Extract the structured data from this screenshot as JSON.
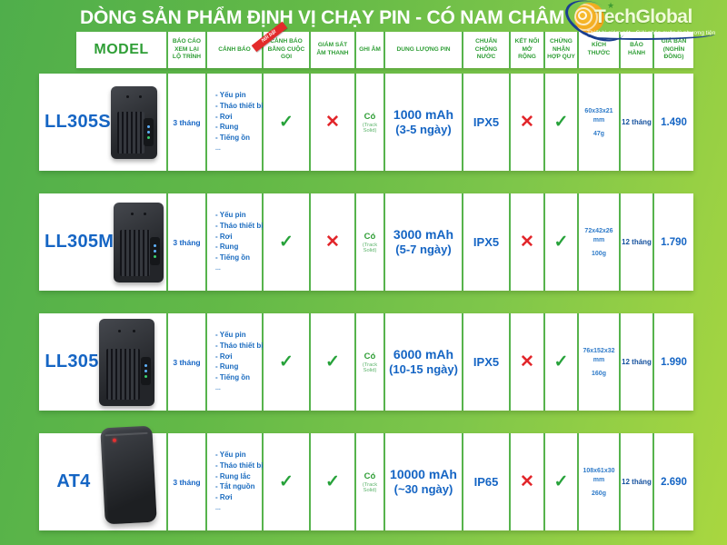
{
  "title": "DÒNG SẢN PHẨM ĐỊNH VỊ CHẠY PIN - CÓ NAM CHÂM",
  "logo": {
    "brand": "TechGlobal",
    "tagline": "Thiết bị giám sát - Giải pháp quản lý phương tiện",
    "star": "★"
  },
  "table": {
    "ribbon": "Nổi bật",
    "columns": [
      "MODEL",
      "BÁO CÁO XEM LẠI LỘ TRÌNH",
      "CẢNH BÁO",
      "CẢNH BÁO BẰNG CUỘC GỌI",
      "GIÁM SÁT ÂM THANH",
      "GHI ÂM",
      "DUNG LƯỢNG PIN",
      "CHUẨN CHỐNG NƯỚC",
      "KẾT NỐI MỞ RỘNG",
      "CHỨNG NHẬN HỢP QUY",
      "KÍCH THƯỚC",
      "BẢO HÀNH",
      "GIÁ BÁN (NGHÌN ĐỒNG)"
    ],
    "rows": [
      {
        "model": "LL305S",
        "report": "3 tháng",
        "alerts": [
          "- Yếu pin",
          "- Tháo thiết bị",
          "- Rơi",
          "- Rung",
          "- Tiếng ồn",
          "..."
        ],
        "call_alert": "✓",
        "sound_monitor": "✕",
        "recording": "Có",
        "recording_note": "(Track Solid)",
        "battery": "1000 mAh",
        "battery_days": "(3-5 ngày)",
        "waterproof": "IPX5",
        "expansion": "✕",
        "certified": "✓",
        "dimensions": "60x33x21 mm",
        "weight": "47g",
        "warranty": "12 tháng",
        "price": "1.490"
      },
      {
        "model": "LL305M",
        "report": "3 tháng",
        "alerts": [
          "- Yếu pin",
          "- Tháo thiết bị",
          "- Rơi",
          "- Rung",
          "- Tiếng ồn",
          "..."
        ],
        "call_alert": "✓",
        "sound_monitor": "✕",
        "recording": "Có",
        "recording_note": "(Track Solid)",
        "battery": "3000 mAh",
        "battery_days": "(5-7 ngày)",
        "waterproof": "IPX5",
        "expansion": "✕",
        "certified": "✓",
        "dimensions": "72x42x26 mm",
        "weight": "100g",
        "warranty": "12 tháng",
        "price": "1.790"
      },
      {
        "model": "LL305",
        "report": "3 tháng",
        "alerts": [
          "- Yếu pin",
          "- Tháo thiết bị",
          "- Rơi",
          "- Rung",
          "- Tiếng ồn",
          "..."
        ],
        "call_alert": "✓",
        "sound_monitor": "✓",
        "recording": "Có",
        "recording_note": "(Track Solid)",
        "battery": "6000 mAh",
        "battery_days": "(10-15 ngày)",
        "waterproof": "IPX5",
        "expansion": "✕",
        "certified": "✓",
        "dimensions": "76x152x32 mm",
        "weight": "160g",
        "warranty": "12 tháng",
        "price": "1.990"
      },
      {
        "model": "AT4",
        "report": "3 tháng",
        "alerts": [
          "- Yếu pin",
          "- Tháo thiết bị",
          "- Rung lắc",
          "- Tắt nguồn",
          "- Rơi",
          "..."
        ],
        "call_alert": "✓",
        "sound_monitor": "✓",
        "recording": "Có",
        "recording_note": "(Track Solid)",
        "battery": "10000 mAh",
        "battery_days": "(~30 ngày)",
        "waterproof": "IP65",
        "expansion": "✕",
        "certified": "✓",
        "dimensions": "108x61x30 mm",
        "weight": "260g",
        "warranty": "12 tháng",
        "price": "2.690"
      }
    ]
  },
  "colors": {
    "header_green": "#2f9e36",
    "body_blue": "#1565c4",
    "check_green": "#27a23a",
    "cross_red": "#e2262b",
    "ribbon_red": "#e32b2b",
    "logo_yellow": "#ef9d13",
    "logo_navy": "#1b3f8f"
  }
}
